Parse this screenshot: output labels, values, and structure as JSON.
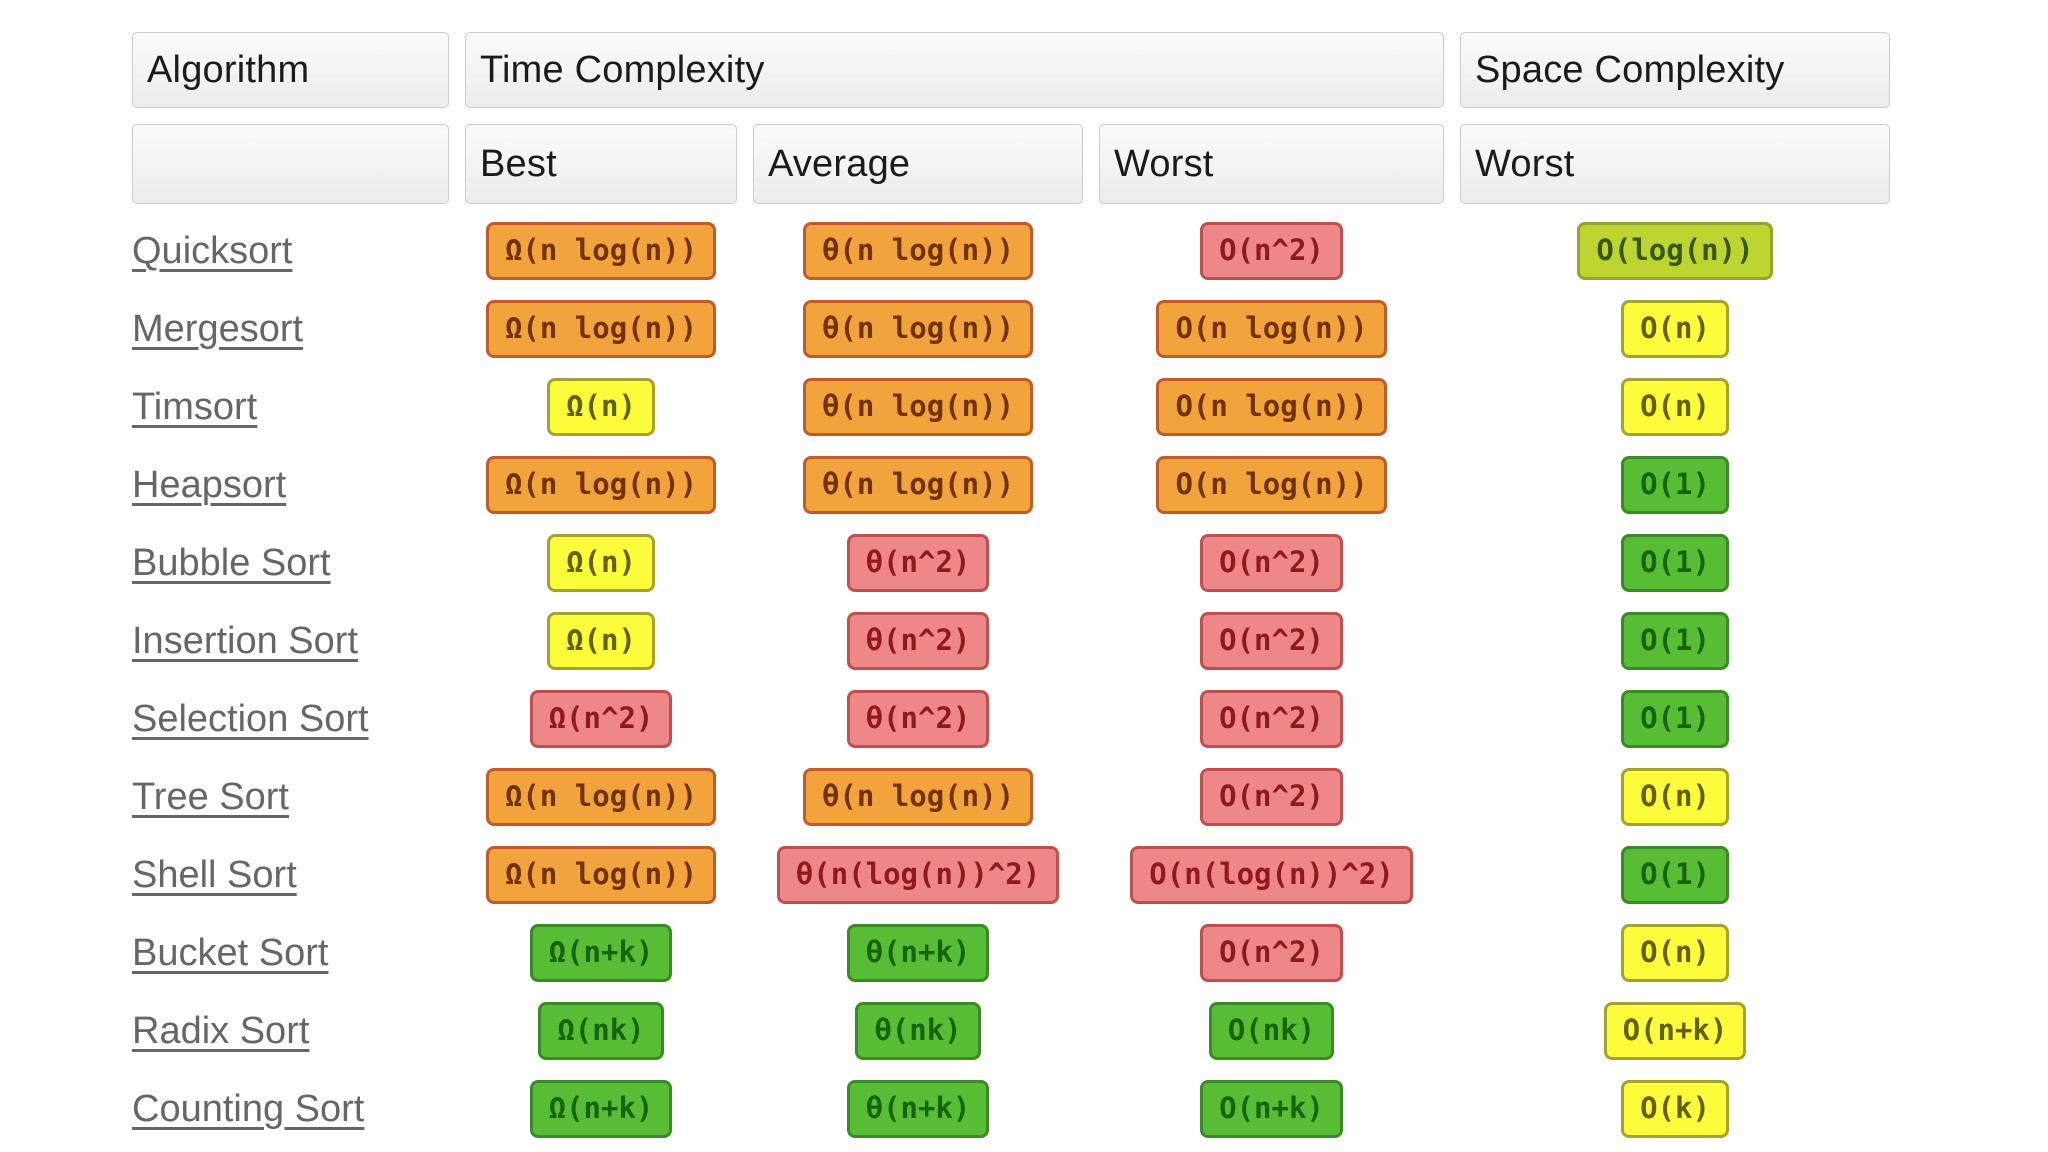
{
  "page": {
    "background": "#ffffff"
  },
  "table": {
    "header": {
      "algorithm_label": "Algorithm",
      "time_complexity_label": "Time Complexity",
      "space_complexity_label": "Space Complexity"
    },
    "subheader": {
      "best_label": "Best",
      "average_label": "Average",
      "worst_label": "Worst",
      "space_worst_label": "Worst"
    },
    "rows": [
      {
        "name": "Quicksort",
        "best": {
          "text": "Ω(n log(n))",
          "level": "orange"
        },
        "average": {
          "text": "θ(n log(n))",
          "level": "orange"
        },
        "worst": {
          "text": "O(n^2)",
          "level": "red"
        },
        "space_worst": {
          "text": "O(log(n))",
          "level": "yellowgreen"
        }
      },
      {
        "name": "Mergesort",
        "best": {
          "text": "Ω(n log(n))",
          "level": "orange"
        },
        "average": {
          "text": "θ(n log(n))",
          "level": "orange"
        },
        "worst": {
          "text": "O(n log(n))",
          "level": "orange"
        },
        "space_worst": {
          "text": "O(n)",
          "level": "yellow"
        }
      },
      {
        "name": "Timsort",
        "best": {
          "text": "Ω(n)",
          "level": "yellow"
        },
        "average": {
          "text": "θ(n log(n))",
          "level": "orange"
        },
        "worst": {
          "text": "O(n log(n))",
          "level": "orange"
        },
        "space_worst": {
          "text": "O(n)",
          "level": "yellow"
        }
      },
      {
        "name": "Heapsort",
        "best": {
          "text": "Ω(n log(n))",
          "level": "orange"
        },
        "average": {
          "text": "θ(n log(n))",
          "level": "orange"
        },
        "worst": {
          "text": "O(n log(n))",
          "level": "orange"
        },
        "space_worst": {
          "text": "O(1)",
          "level": "green"
        }
      },
      {
        "name": "Bubble Sort",
        "best": {
          "text": "Ω(n)",
          "level": "yellow"
        },
        "average": {
          "text": "θ(n^2)",
          "level": "red"
        },
        "worst": {
          "text": "O(n^2)",
          "level": "red"
        },
        "space_worst": {
          "text": "O(1)",
          "level": "green"
        }
      },
      {
        "name": "Insertion Sort",
        "best": {
          "text": "Ω(n)",
          "level": "yellow"
        },
        "average": {
          "text": "θ(n^2)",
          "level": "red"
        },
        "worst": {
          "text": "O(n^2)",
          "level": "red"
        },
        "space_worst": {
          "text": "O(1)",
          "level": "green"
        }
      },
      {
        "name": "Selection Sort",
        "best": {
          "text": "Ω(n^2)",
          "level": "red"
        },
        "average": {
          "text": "θ(n^2)",
          "level": "red"
        },
        "worst": {
          "text": "O(n^2)",
          "level": "red"
        },
        "space_worst": {
          "text": "O(1)",
          "level": "green"
        }
      },
      {
        "name": "Tree Sort",
        "best": {
          "text": "Ω(n log(n))",
          "level": "orange"
        },
        "average": {
          "text": "θ(n log(n))",
          "level": "orange"
        },
        "worst": {
          "text": "O(n^2)",
          "level": "red"
        },
        "space_worst": {
          "text": "O(n)",
          "level": "yellow"
        }
      },
      {
        "name": "Shell Sort",
        "best": {
          "text": "Ω(n log(n))",
          "level": "orange"
        },
        "average": {
          "text": "θ(n(log(n))^2)",
          "level": "red"
        },
        "worst": {
          "text": "O(n(log(n))^2)",
          "level": "red"
        },
        "space_worst": {
          "text": "O(1)",
          "level": "green"
        }
      },
      {
        "name": "Bucket Sort",
        "best": {
          "text": "Ω(n+k)",
          "level": "green"
        },
        "average": {
          "text": "θ(n+k)",
          "level": "green"
        },
        "worst": {
          "text": "O(n^2)",
          "level": "red"
        },
        "space_worst": {
          "text": "O(n)",
          "level": "yellow"
        }
      },
      {
        "name": "Radix Sort",
        "best": {
          "text": "Ω(nk)",
          "level": "green"
        },
        "average": {
          "text": "θ(nk)",
          "level": "green"
        },
        "worst": {
          "text": "O(nk)",
          "level": "green"
        },
        "space_worst": {
          "text": "O(n+k)",
          "level": "yellow"
        }
      },
      {
        "name": "Counting Sort",
        "best": {
          "text": "Ω(n+k)",
          "level": "green"
        },
        "average": {
          "text": "θ(n+k)",
          "level": "green"
        },
        "worst": {
          "text": "O(n+k)",
          "level": "green"
        },
        "space_worst": {
          "text": "O(k)",
          "level": "yellow"
        }
      }
    ]
  },
  "legend_colors": {
    "orange": {
      "bg": "#F3A33B",
      "border": "#C35B28",
      "text": "#703305"
    },
    "red": {
      "bg": "#EE8888",
      "border": "#C14F4D",
      "text": "#92191B"
    },
    "yellow": {
      "bg": "#FCFC3A",
      "border": "#A3A32E",
      "text": "#62620A"
    },
    "yellowgreen": {
      "bg": "#BED431",
      "border": "#8FA62A",
      "text": "#365812"
    },
    "green": {
      "bg": "#57BD34",
      "border": "#3B8A26",
      "text": "#176310"
    }
  },
  "chart_data": {
    "type": "table",
    "columns": [
      "Algorithm",
      "Time Complexity - Best",
      "Time Complexity - Average",
      "Time Complexity - Worst",
      "Space Complexity - Worst"
    ],
    "rows": [
      [
        "Quicksort",
        "Ω(n log(n))",
        "θ(n log(n))",
        "O(n^2)",
        "O(log(n))"
      ],
      [
        "Mergesort",
        "Ω(n log(n))",
        "θ(n log(n))",
        "O(n log(n))",
        "O(n)"
      ],
      [
        "Timsort",
        "Ω(n)",
        "θ(n log(n))",
        "O(n log(n))",
        "O(n)"
      ],
      [
        "Heapsort",
        "Ω(n log(n))",
        "θ(n log(n))",
        "O(n log(n))",
        "O(1)"
      ],
      [
        "Bubble Sort",
        "Ω(n)",
        "θ(n^2)",
        "O(n^2)",
        "O(1)"
      ],
      [
        "Insertion Sort",
        "Ω(n)",
        "θ(n^2)",
        "O(n^2)",
        "O(1)"
      ],
      [
        "Selection Sort",
        "Ω(n^2)",
        "θ(n^2)",
        "O(n^2)",
        "O(1)"
      ],
      [
        "Tree Sort",
        "Ω(n log(n))",
        "θ(n log(n))",
        "O(n^2)",
        "O(n)"
      ],
      [
        "Shell Sort",
        "Ω(n log(n))",
        "θ(n(log(n))^2)",
        "O(n(log(n))^2)",
        "O(1)"
      ],
      [
        "Bucket Sort",
        "Ω(n+k)",
        "θ(n+k)",
        "O(n^2)",
        "O(n)"
      ],
      [
        "Radix Sort",
        "Ω(nk)",
        "θ(nk)",
        "O(nk)",
        "O(n+k)"
      ],
      [
        "Counting Sort",
        "Ω(n+k)",
        "θ(n+k)",
        "O(n+k)",
        "O(k)"
      ]
    ]
  }
}
